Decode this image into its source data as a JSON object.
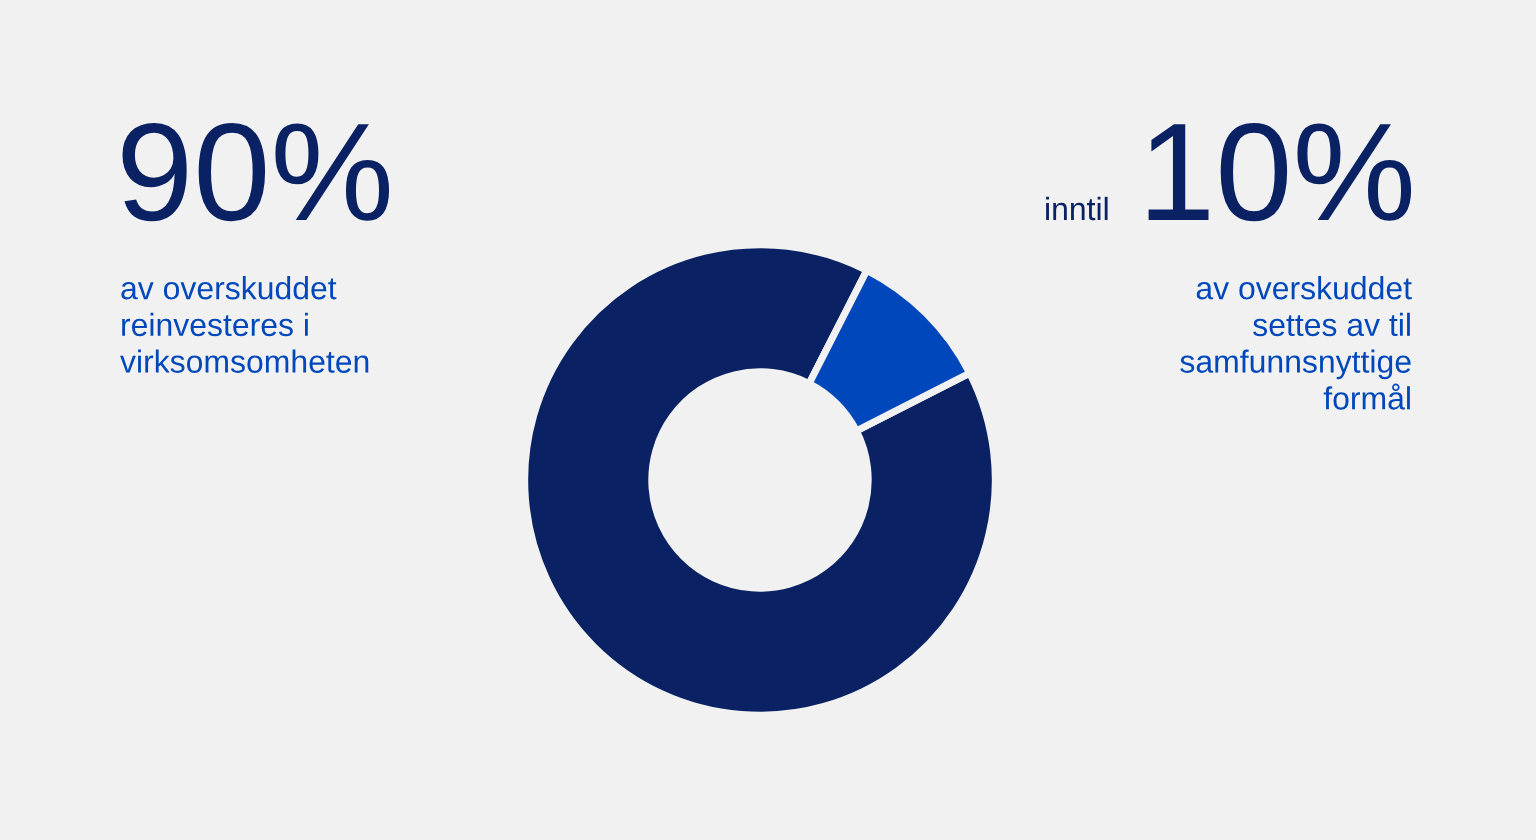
{
  "chart_data": {
    "type": "donut",
    "categories": [
      null,
      null
    ],
    "values": [
      90,
      10
    ],
    "colors": [
      "#0a2263",
      "#0047bb"
    ],
    "value_labels": [
      "90%",
      "10%"
    ],
    "annotations": [
      "av overskuddet\nreinvesteres i\nvirksomsomheten",
      "inntil",
      "av overskuddet\nsettes av til\nsamfunnsnyttige\nformål"
    ]
  }
}
